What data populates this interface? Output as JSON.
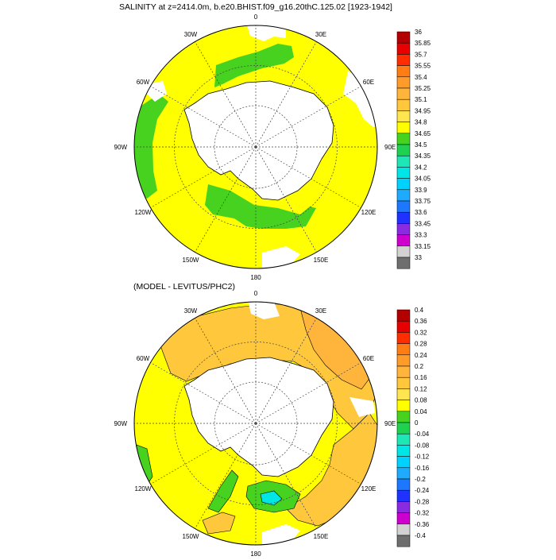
{
  "panels": [
    {
      "title": "SALINITY at z=2414.0m, b.e20.BHIST.f09_g16.20thC.125.02 [1923-1942]",
      "colors": [
        "#6e6e6e",
        "#d2d2d2",
        "#cd00cd",
        "#8a2be2",
        "#1f32ff",
        "#1e78ff",
        "#1eaaff",
        "#00d2ff",
        "#00e6e6",
        "#1ee6b4",
        "#1ed250",
        "#46d21e",
        "#ffff00",
        "#ffe650",
        "#ffc83c",
        "#ffb43c",
        "#ff9b28",
        "#ff7d14",
        "#ff2d00",
        "#e60000",
        "#b40000"
      ],
      "labels": [
        "36",
        "35.85",
        "35.7",
        "35.55",
        "35.4",
        "35.25",
        "35.1",
        "34.95",
        "34.8",
        "34.65",
        "34.5",
        "34.35",
        "34.2",
        "34.05",
        "33.9",
        "33.75",
        "33.6",
        "33.45",
        "33.3",
        "33.15",
        "33"
      ]
    },
    {
      "title": "(MODEL - LEVITUS/PHC2)",
      "colors": [
        "#6e6e6e",
        "#d2d2d2",
        "#cd00cd",
        "#8a2be2",
        "#1f32ff",
        "#1e78ff",
        "#1eaaff",
        "#00d2ff",
        "#00e6e6",
        "#1ee6b4",
        "#1ed250",
        "#46d21e",
        "#ffff00",
        "#ffe650",
        "#ffc83c",
        "#ffb43c",
        "#ff9b28",
        "#ff7d14",
        "#ff2d00",
        "#e60000",
        "#b40000"
      ],
      "labels": [
        "0.4",
        "0.36",
        "0.32",
        "0.28",
        "0.24",
        "0.2",
        "0.16",
        "0.12",
        "0.08",
        "0.04",
        "0",
        "-0.04",
        "-0.08",
        "-0.12",
        "-0.16",
        "-0.2",
        "-0.24",
        "-0.28",
        "-0.32",
        "-0.36",
        "-0.4"
      ]
    }
  ],
  "lon_labels": [
    "0",
    "30E",
    "60E",
    "90E",
    "120E",
    "150E",
    "180",
    "150W",
    "120W",
    "90W",
    "60W",
    "30W"
  ],
  "map_colors": {
    "ocean_top": "#ffff00",
    "green": "#46d21e",
    "light_green": "#1ed250",
    "cyan": "#00e6e6",
    "orange_light": "#ffc83c",
    "orange": "#ffb43c",
    "orange_dark": "#ff9b28",
    "land": "#ffffff"
  }
}
